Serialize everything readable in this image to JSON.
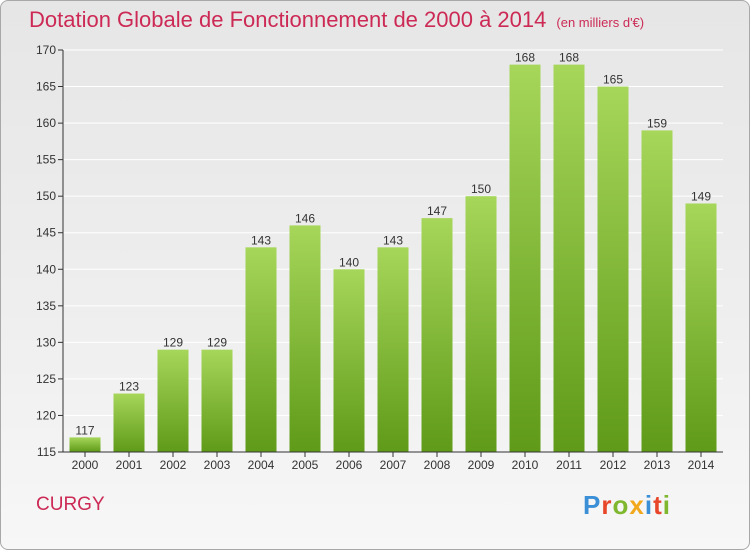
{
  "header": {
    "title": "Dotation Globale de Fonctionnement de 2000 à 2014",
    "unit": "(en milliers d'€)"
  },
  "footer": {
    "commune": "CURGY",
    "logo_text": "Proxiti"
  },
  "colors": {
    "title": "#cc2a55",
    "bar_light": "#a6d65a",
    "bar_dark": "#5f9a18",
    "axis": "#333333",
    "grid": "#ffffff"
  },
  "chart_data": {
    "type": "bar",
    "title": "Dotation Globale de Fonctionnement de 2000 à 2014",
    "xlabel": "",
    "ylabel": "",
    "categories": [
      "2000",
      "2001",
      "2002",
      "2003",
      "2004",
      "2005",
      "2006",
      "2007",
      "2008",
      "2009",
      "2010",
      "2011",
      "2012",
      "2013",
      "2014"
    ],
    "values": [
      117,
      123,
      129,
      129,
      143,
      146,
      140,
      143,
      147,
      150,
      168,
      168,
      165,
      159,
      149
    ],
    "ylim": [
      115,
      170
    ],
    "yticks": [
      115,
      120,
      125,
      130,
      135,
      140,
      145,
      150,
      155,
      160,
      165,
      170
    ],
    "grid": true,
    "data_labels": true
  }
}
